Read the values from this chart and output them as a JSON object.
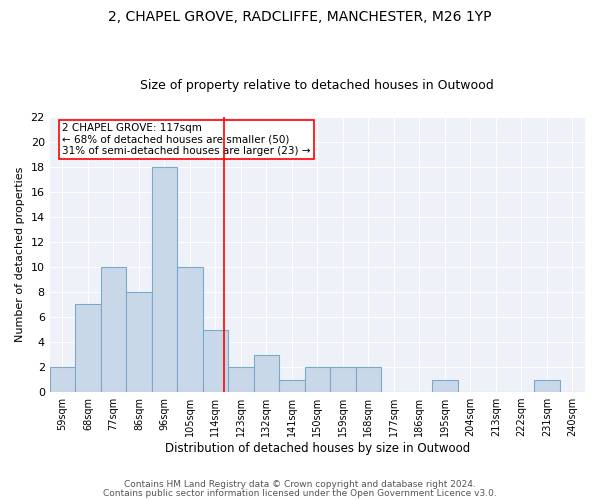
{
  "title1": "2, CHAPEL GROVE, RADCLIFFE, MANCHESTER, M26 1YP",
  "title2": "Size of property relative to detached houses in Outwood",
  "xlabel": "Distribution of detached houses by size in Outwood",
  "ylabel": "Number of detached properties",
  "bin_labels": [
    "59sqm",
    "68sqm",
    "77sqm",
    "86sqm",
    "96sqm",
    "105sqm",
    "114sqm",
    "123sqm",
    "132sqm",
    "141sqm",
    "150sqm",
    "159sqm",
    "168sqm",
    "177sqm",
    "186sqm",
    "195sqm",
    "204sqm",
    "213sqm",
    "222sqm",
    "231sqm",
    "240sqm"
  ],
  "counts": [
    2,
    7,
    10,
    8,
    18,
    10,
    5,
    2,
    3,
    1,
    2,
    2,
    2,
    0,
    0,
    1,
    0,
    0,
    0,
    1,
    0
  ],
  "bar_color": "#c8d8e8",
  "bar_edge_color": "#7aaac8",
  "reference_line_x": 5,
  "reference_line_color": "red",
  "annotation_text": "2 CHAPEL GROVE: 117sqm\n← 68% of detached houses are smaller (50)\n31% of semi-detached houses are larger (23) →",
  "annotation_box_color": "white",
  "annotation_box_edge_color": "red",
  "ylim": [
    0,
    22
  ],
  "yticks": [
    0,
    2,
    4,
    6,
    8,
    10,
    12,
    14,
    16,
    18,
    20,
    22
  ],
  "bg_color": "#eef2f8",
  "title1_fontsize": 10,
  "title2_fontsize": 9,
  "xlabel_fontsize": 8.5,
  "ylabel_fontsize": 8,
  "tick_fontsize": 7,
  "annotation_fontsize": 7.5,
  "footer_fontsize": 6.5,
  "footer1": "Contains HM Land Registry data © Crown copyright and database right 2024.",
  "footer2": "Contains public sector information licensed under the Open Government Licence v3.0."
}
